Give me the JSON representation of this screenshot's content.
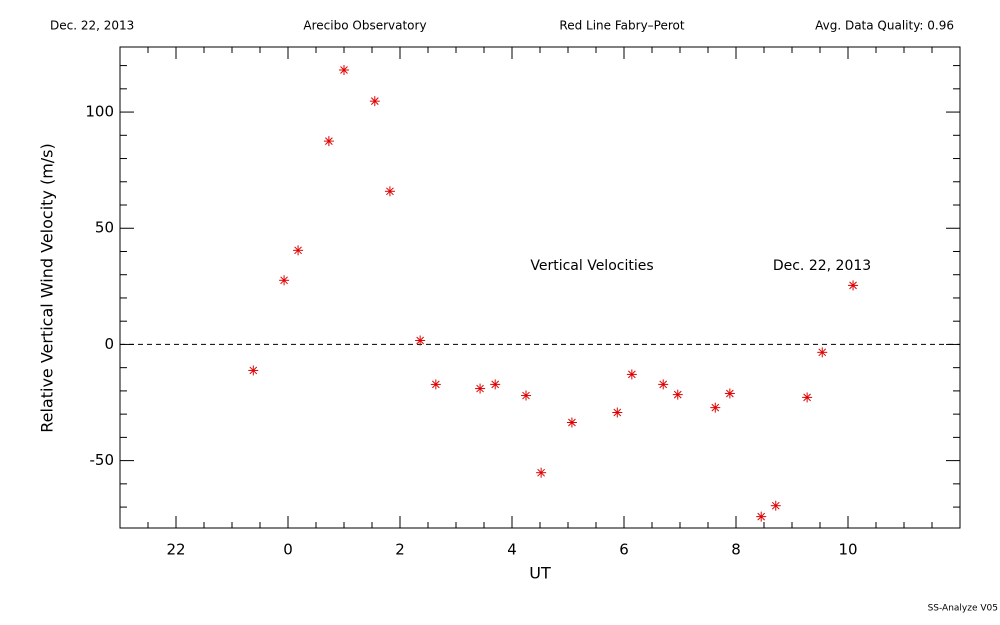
{
  "chart_data": {
    "type": "scatter",
    "header": [
      "Dec. 22, 2013",
      "Arecibo Observatory",
      "Red Line Fabry–Perot",
      "Avg. Data Quality: 0.96"
    ],
    "footer": "SS-Analyze V05",
    "annotations": [
      "Vertical Velocities",
      "Dec. 22, 2013"
    ],
    "xlabel": "UT",
    "ylabel": "Relative Vertical Wind Velocity (m/s)",
    "xlim": [
      -3,
      12
    ],
    "ylim": [
      -79,
      128
    ],
    "xticks": [
      {
        "value": -2,
        "label": "22"
      },
      0,
      2,
      4,
      6,
      8,
      10
    ],
    "yticks": [
      -50,
      0,
      50,
      100
    ],
    "xminorticks": [
      -2.5,
      -1.5,
      -1,
      -0.5,
      0.5,
      1,
      1.5,
      2.5,
      3,
      3.5,
      4.5,
      5,
      5.5,
      6.5,
      7,
      7.5,
      8.5,
      9,
      9.5,
      10.5,
      11,
      11.5
    ],
    "yminorticks": [
      -70,
      -60,
      -40,
      -30,
      -20,
      -10,
      10,
      20,
      30,
      40,
      60,
      70,
      80,
      90,
      110,
      120
    ],
    "zero_line": true,
    "color": "#e00000",
    "x": [
      -0.62,
      -0.07,
      0.18,
      0.73,
      1.0,
      1.55,
      1.82,
      2.36,
      2.64,
      3.43,
      3.7,
      4.25,
      4.52,
      5.07,
      5.88,
      6.14,
      6.7,
      6.96,
      7.63,
      7.89,
      8.45,
      8.71,
      9.27,
      9.54,
      10.09
    ],
    "values": [
      -11.2,
      27.6,
      40.5,
      87.5,
      118.1,
      104.7,
      65.9,
      1.7,
      -17.2,
      -19.0,
      -17.2,
      -22.0,
      -55.2,
      -33.6,
      -29.3,
      -12.9,
      -17.2,
      -21.6,
      -27.2,
      -21.1,
      -74.1,
      -69.4,
      -22.8,
      -3.4,
      25.4
    ]
  }
}
